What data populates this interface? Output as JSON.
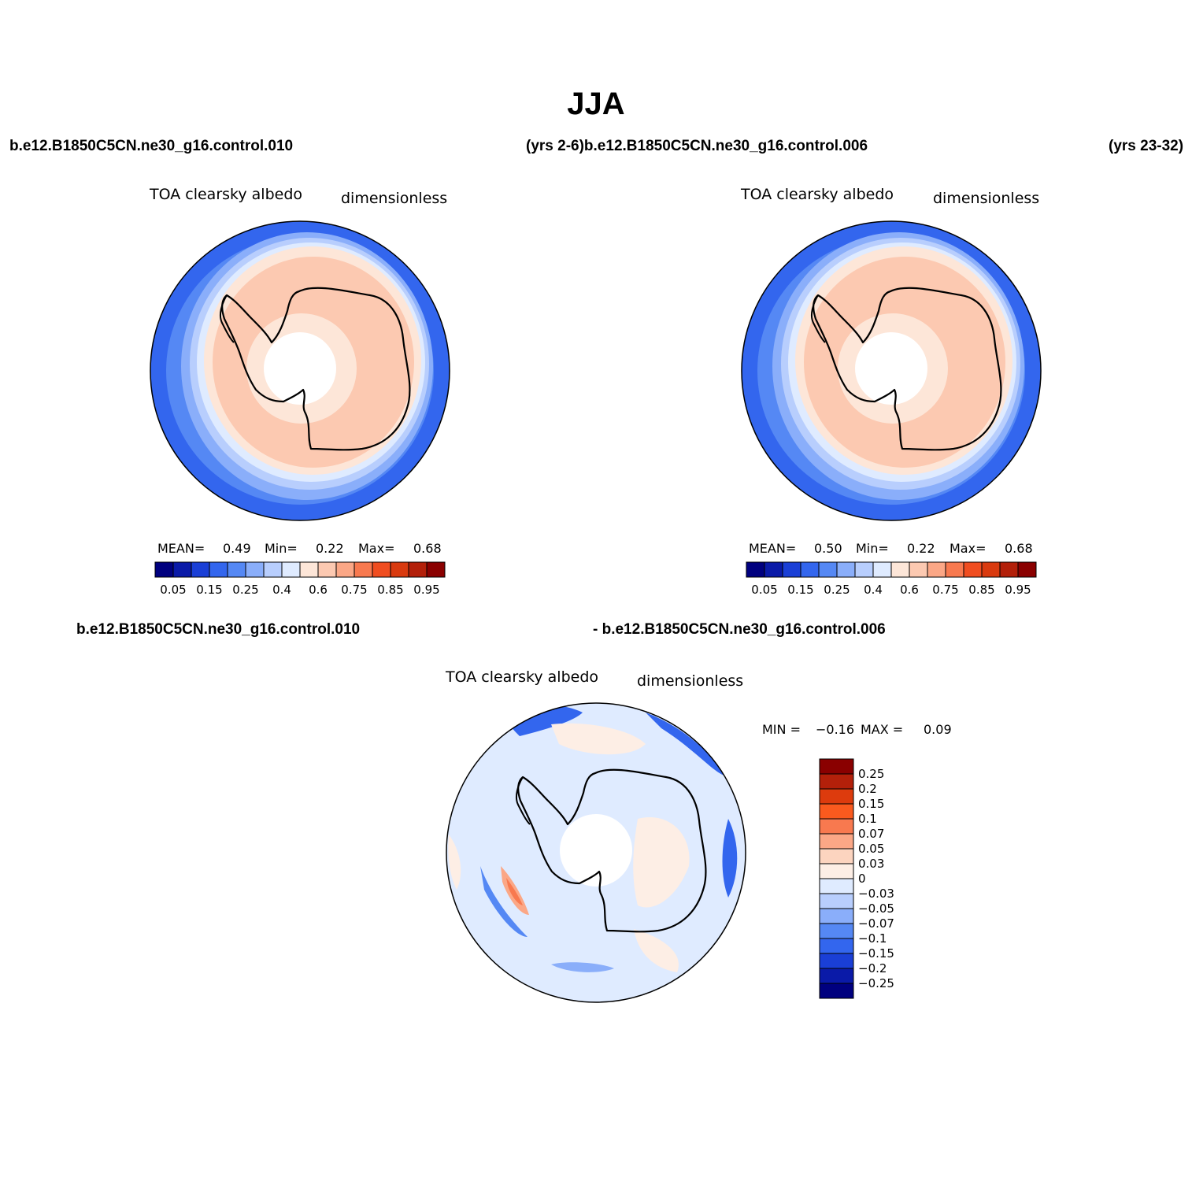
{
  "figure": {
    "title": "JJA"
  },
  "header": {
    "case_left": "b.e12.B1850C5CN.ne30_g16.control.010",
    "case_middle": "(yrs 2-6)b.e12.B1850C5CN.ne30_g16.control.006",
    "case_right_clipped": "(yrs 23-32)"
  },
  "panels": [
    {
      "id": "case1",
      "variable": "TOA clearsky albedo",
      "units": "dimensionless",
      "stats": {
        "mean_label": "MEAN=",
        "mean": "0.49",
        "min_label": "Min=",
        "min": "0.22",
        "max_label": "Max=",
        "max": "0.68"
      }
    },
    {
      "id": "case2",
      "variable": "TOA clearsky albedo",
      "units": "dimensionless",
      "stats": {
        "mean_label": "MEAN=",
        "mean": "0.50",
        "min_label": "Min=",
        "min": "0.22",
        "max_label": "Max=",
        "max": "0.68"
      }
    },
    {
      "id": "difference",
      "case_a": "b.e12.B1850C5CN.ne30_g16.control.010",
      "case_b": "- b.e12.B1850C5CN.ne30_g16.control.006",
      "variable": "TOA clearsky albedo",
      "units": "dimensionless",
      "stats": {
        "min_label": "MIN =",
        "min": "−0.16",
        "max_label": "MAX =",
        "max": "0.09"
      }
    }
  ],
  "colorbar_main": {
    "colors": [
      "#00007f",
      "#0a1aa8",
      "#1a3fd6",
      "#3366ee",
      "#5588f4",
      "#8aaefa",
      "#b8cefd",
      "#dfebff",
      "#fde6d8",
      "#fcc9b1",
      "#fba786",
      "#f8794f",
      "#f04d20",
      "#d93a0f",
      "#b3200a",
      "#8a0000"
    ],
    "tick_labels": [
      "0.05",
      "0.15",
      "0.25",
      "0.4",
      "0.6",
      "0.75",
      "0.85",
      "0.95"
    ]
  },
  "colorbar_diff": {
    "colors": [
      "#00007f",
      "#0a1aa8",
      "#1a3fd6",
      "#3366ee",
      "#5588f4",
      "#8aaefa",
      "#b8cefd",
      "#dfebff",
      "#fdeee5",
      "#fcd4bf",
      "#fba786",
      "#f8794f",
      "#fa5a1e",
      "#dd3b0d",
      "#b3200a",
      "#8a0000"
    ],
    "tick_labels": [
      "0.25",
      "0.2",
      "0.15",
      "0.1",
      "0.07",
      "0.05",
      "0.03",
      "0",
      "−0.03",
      "−0.05",
      "−0.07",
      "−0.1",
      "−0.15",
      "−0.2",
      "−0.25"
    ]
  }
}
